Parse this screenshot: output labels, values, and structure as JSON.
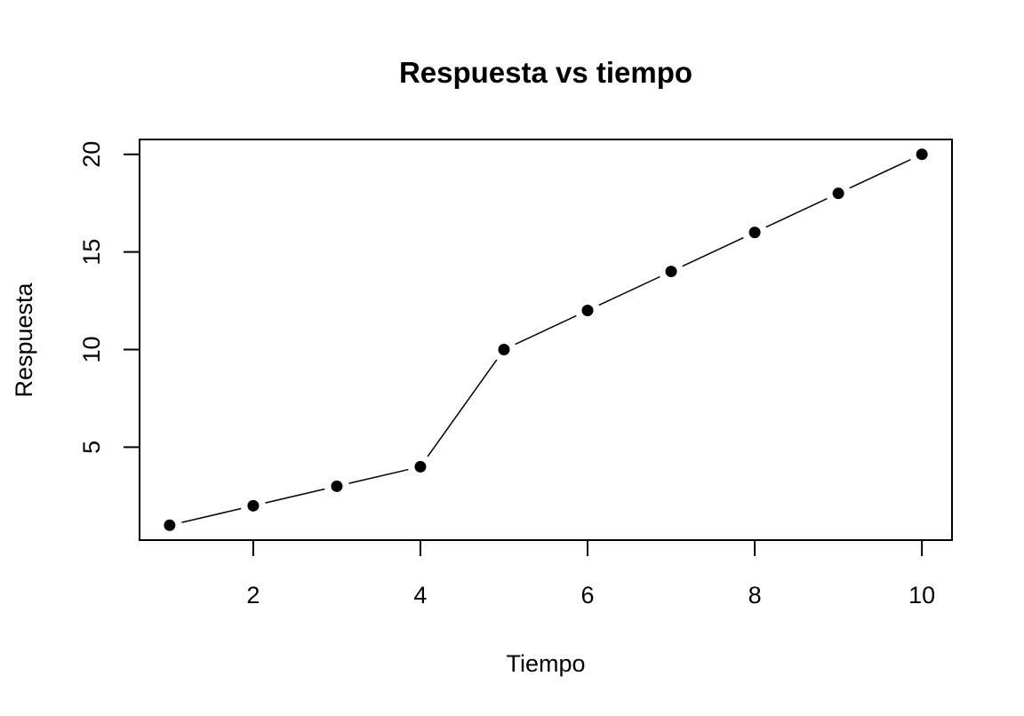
{
  "chart_data": {
    "type": "line",
    "title": "Respuesta vs tiempo",
    "xlabel": "Tiempo",
    "ylabel": "Respuesta",
    "x": [
      1,
      2,
      3,
      4,
      5,
      6,
      7,
      8,
      9,
      10
    ],
    "series": [
      {
        "values": [
          1,
          2,
          3,
          4,
          10,
          12,
          14,
          16,
          18,
          20
        ]
      }
    ],
    "xlim": [
      0.64,
      10.36
    ],
    "ylim": [
      0.24,
      20.76
    ],
    "x_ticks": [
      2,
      4,
      6,
      8,
      10
    ],
    "y_ticks": [
      5,
      10,
      15,
      20
    ],
    "x_tick_labels": [
      "2",
      "4",
      "6",
      "8",
      "10"
    ],
    "y_tick_labels": [
      "5",
      "10",
      "15",
      "20"
    ],
    "grid": false,
    "line_style": "solid line with gaps around points",
    "marker": "filled-circle",
    "color": "#000000"
  }
}
